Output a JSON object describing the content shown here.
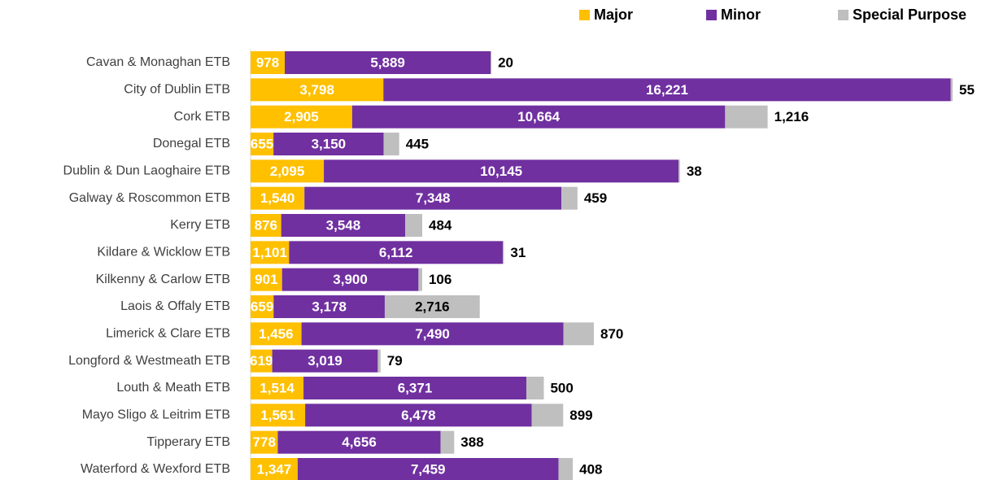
{
  "chart_data": {
    "type": "stacked_bar_horizontal",
    "categories": [
      "Cavan & Monaghan ETB",
      "City of Dublin ETB",
      "Cork ETB",
      "Donegal ETB",
      "Dublin & Dun Laoghaire ETB",
      "Galway & Roscommon ETB",
      "Kerry ETB",
      "Kildare & Wicklow ETB",
      "Kilkenny & Carlow ETB",
      "Laois & Offaly ETB",
      "Limerick & Clare ETB",
      "Longford & Westmeath ETB",
      "Louth & Meath ETB",
      "Mayo Sligo & Leitrim ETB",
      "Tipperary ETB",
      "Waterford & Wexford ETB"
    ],
    "series": [
      {
        "name": "Major",
        "color": "#FFC000",
        "values": [
          978,
          3798,
          2905,
          655,
          2095,
          1540,
          876,
          1101,
          901,
          659,
          1456,
          619,
          1514,
          1561,
          778,
          1347
        ],
        "value_labels": [
          "978",
          "3,798",
          "2,905",
          "655",
          "2,095",
          "1,540",
          "876",
          "1,101",
          "901",
          "659",
          "1,456",
          "619",
          "1,514",
          "1,561",
          "778",
          "1,347"
        ]
      },
      {
        "name": "Minor",
        "color": "#7030A0",
        "values": [
          5889,
          16221,
          10664,
          3150,
          10145,
          7348,
          3548,
          6112,
          3900,
          3178,
          7490,
          3019,
          6371,
          6478,
          4656,
          7459
        ],
        "value_labels": [
          "5,889",
          "16,221",
          "10,664",
          "3,150",
          "10,145",
          "7,348",
          "3,548",
          "6,112",
          "3,900",
          "3,178",
          "7,490",
          "3,019",
          "6,371",
          "6,478",
          "4,656",
          "7,459"
        ]
      },
      {
        "name": "Special Purpose",
        "color": "#BFBFBF",
        "values": [
          20,
          55,
          1216,
          445,
          38,
          459,
          484,
          31,
          106,
          2716,
          870,
          79,
          500,
          899,
          388,
          408
        ],
        "value_labels": [
          "20",
          "55",
          "1,216",
          "445",
          "38",
          "459",
          "484",
          "31",
          "106",
          "2,716",
          "870",
          "79",
          "500",
          "899",
          "388",
          "408"
        ]
      }
    ],
    "legend": "top-right"
  }
}
